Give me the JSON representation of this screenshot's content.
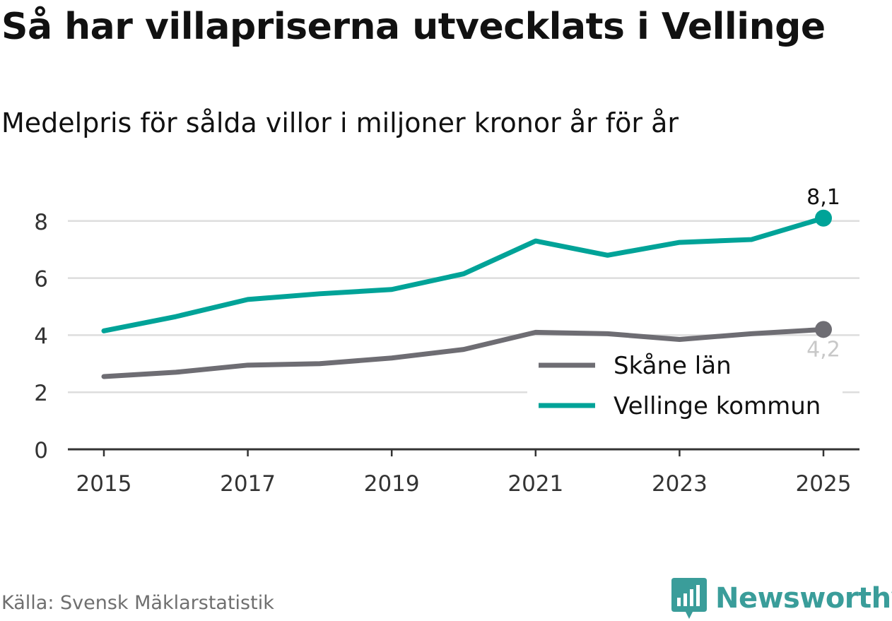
{
  "title": "Så har villapriserna utvecklats i Vellinge",
  "subtitle": "Medelpris för sålda villor i miljoner kronor år för år",
  "source": "Källa: Svensk Mäklarstatistik",
  "brand": {
    "name": "Newsworthy",
    "icon": "newsworthy-logo-icon"
  },
  "colors": {
    "teal": "#00a398",
    "gray": "#6e6d73",
    "grid": "#dddddd",
    "text": "#111111"
  },
  "chart_data": {
    "type": "line",
    "x": [
      2015,
      2016,
      2017,
      2018,
      2019,
      2020,
      2021,
      2022,
      2023,
      2024,
      2025
    ],
    "x_ticks": [
      "2015",
      "2017",
      "2019",
      "2021",
      "2023",
      "2025"
    ],
    "y_ticks": [
      "0",
      "2",
      "4",
      "6",
      "8"
    ],
    "ylim": [
      0,
      9
    ],
    "grid": true,
    "legend_position": "bottom-right",
    "series": [
      {
        "name": "Skåne län",
        "color": "#6e6d73",
        "values": [
          2.55,
          2.7,
          2.95,
          3.0,
          3.2,
          3.5,
          4.1,
          4.05,
          3.85,
          4.05,
          4.2
        ],
        "end_label": "4,2"
      },
      {
        "name": "Vellinge kommun",
        "color": "#00a398",
        "values": [
          4.15,
          4.65,
          5.25,
          5.45,
          5.6,
          6.15,
          7.3,
          6.8,
          7.25,
          7.35,
          8.1
        ],
        "end_label": "8,1"
      }
    ]
  }
}
